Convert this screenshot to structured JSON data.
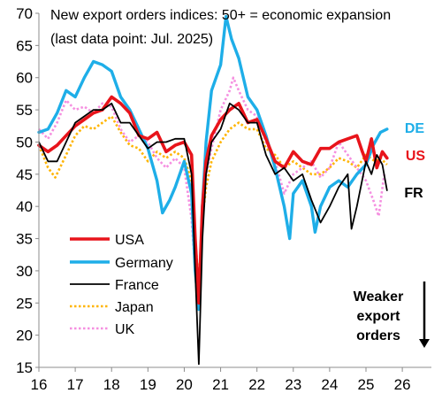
{
  "chart_data": {
    "type": "line",
    "title_line1": "New export orders indices: 50+ = economic expansion",
    "title_line2": "(last data point: Jul. 2025)",
    "xlabel": "",
    "ylabel": "",
    "xlim": [
      2016,
      2026.8
    ],
    "ylim": [
      15,
      70
    ],
    "x_ticks": [
      16,
      17,
      18,
      19,
      20,
      21,
      22,
      23,
      24,
      25,
      26
    ],
    "y_ticks": [
      15,
      20,
      25,
      30,
      35,
      40,
      45,
      50,
      55,
      60,
      65,
      70
    ],
    "grid": false,
    "legend_position": "lower-left",
    "annotation": [
      "Weaker",
      "export",
      "orders"
    ],
    "end_labels": [
      {
        "text": "DE",
        "color": "#1EAEE8",
        "y": 52.0
      },
      {
        "text": "US",
        "color": "#E8141B",
        "y": 47.2
      },
      {
        "text": "FR",
        "color": "#000000",
        "y": 42.4
      }
    ],
    "series": [
      {
        "name": "USA",
        "color": "#E8141B",
        "style": "solid",
        "points": [
          [
            2016.0,
            49.5
          ],
          [
            2016.25,
            48.5
          ],
          [
            2016.5,
            49.5
          ],
          [
            2016.75,
            51
          ],
          [
            2017.0,
            52.5
          ],
          [
            2017.25,
            53.5
          ],
          [
            2017.5,
            54.5
          ],
          [
            2017.75,
            55
          ],
          [
            2018.0,
            57
          ],
          [
            2018.25,
            56
          ],
          [
            2018.5,
            54.5
          ],
          [
            2018.75,
            51
          ],
          [
            2019.0,
            50.5
          ],
          [
            2019.25,
            51.5
          ],
          [
            2019.5,
            48.5
          ],
          [
            2019.75,
            49.5
          ],
          [
            2020.0,
            50
          ],
          [
            2020.2,
            48
          ],
          [
            2020.3,
            35
          ],
          [
            2020.4,
            25
          ],
          [
            2020.5,
            40
          ],
          [
            2020.6,
            47
          ],
          [
            2020.75,
            51
          ],
          [
            2021.0,
            53.5
          ],
          [
            2021.25,
            55
          ],
          [
            2021.5,
            56
          ],
          [
            2021.75,
            53
          ],
          [
            2022.0,
            53.5
          ],
          [
            2022.25,
            50.5
          ],
          [
            2022.5,
            47
          ],
          [
            2022.75,
            46
          ],
          [
            2023.0,
            48.5
          ],
          [
            2023.25,
            47
          ],
          [
            2023.5,
            46.5
          ],
          [
            2023.75,
            49
          ],
          [
            2024.0,
            49
          ],
          [
            2024.25,
            50
          ],
          [
            2024.5,
            50.5
          ],
          [
            2024.75,
            51
          ],
          [
            2024.9,
            48.5
          ],
          [
            2025.0,
            47
          ],
          [
            2025.15,
            50.5
          ],
          [
            2025.3,
            46
          ],
          [
            2025.45,
            48.5
          ],
          [
            2025.58,
            47.5
          ]
        ]
      },
      {
        "name": "Germany",
        "color": "#1EAEE8",
        "style": "solid",
        "points": [
          [
            2016.0,
            51.5
          ],
          [
            2016.25,
            52
          ],
          [
            2016.5,
            54.5
          ],
          [
            2016.75,
            58
          ],
          [
            2017.0,
            57
          ],
          [
            2017.25,
            60
          ],
          [
            2017.5,
            62.5
          ],
          [
            2017.75,
            62
          ],
          [
            2018.0,
            61
          ],
          [
            2018.25,
            57
          ],
          [
            2018.5,
            55
          ],
          [
            2018.75,
            52
          ],
          [
            2019.0,
            49
          ],
          [
            2019.25,
            44
          ],
          [
            2019.4,
            39
          ],
          [
            2019.6,
            41
          ],
          [
            2019.75,
            43
          ],
          [
            2020.0,
            47
          ],
          [
            2020.2,
            42
          ],
          [
            2020.3,
            30
          ],
          [
            2020.4,
            24
          ],
          [
            2020.5,
            40
          ],
          [
            2020.6,
            50
          ],
          [
            2020.75,
            58
          ],
          [
            2021.0,
            62
          ],
          [
            2021.15,
            69.5
          ],
          [
            2021.3,
            66
          ],
          [
            2021.5,
            63
          ],
          [
            2021.75,
            57
          ],
          [
            2022.0,
            55
          ],
          [
            2022.25,
            51
          ],
          [
            2022.5,
            46
          ],
          [
            2022.75,
            40
          ],
          [
            2022.9,
            35
          ],
          [
            2023.0,
            42
          ],
          [
            2023.25,
            44
          ],
          [
            2023.5,
            40
          ],
          [
            2023.6,
            36
          ],
          [
            2023.75,
            40
          ],
          [
            2024.0,
            43
          ],
          [
            2024.25,
            44
          ],
          [
            2024.5,
            43
          ],
          [
            2024.75,
            45
          ],
          [
            2025.0,
            46.5
          ],
          [
            2025.2,
            49.5
          ],
          [
            2025.4,
            51.5
          ],
          [
            2025.58,
            52.0
          ]
        ]
      },
      {
        "name": "France",
        "color": "#000000",
        "style": "solid",
        "points": [
          [
            2016.0,
            50
          ],
          [
            2016.25,
            47
          ],
          [
            2016.5,
            47
          ],
          [
            2016.75,
            50
          ],
          [
            2017.0,
            53
          ],
          [
            2017.25,
            54
          ],
          [
            2017.5,
            55
          ],
          [
            2017.75,
            55
          ],
          [
            2018.0,
            56
          ],
          [
            2018.25,
            53
          ],
          [
            2018.5,
            53
          ],
          [
            2018.75,
            51
          ],
          [
            2019.0,
            49
          ],
          [
            2019.25,
            50
          ],
          [
            2019.5,
            50
          ],
          [
            2019.75,
            50.5
          ],
          [
            2020.0,
            50.5
          ],
          [
            2020.2,
            45
          ],
          [
            2020.3,
            30
          ],
          [
            2020.4,
            15.5
          ],
          [
            2020.5,
            35
          ],
          [
            2020.6,
            45
          ],
          [
            2020.75,
            50
          ],
          [
            2021.0,
            52
          ],
          [
            2021.25,
            56
          ],
          [
            2021.5,
            55
          ],
          [
            2021.75,
            53
          ],
          [
            2022.0,
            53
          ],
          [
            2022.25,
            48
          ],
          [
            2022.5,
            45
          ],
          [
            2022.75,
            46
          ],
          [
            2023.0,
            44
          ],
          [
            2023.25,
            45
          ],
          [
            2023.5,
            41
          ],
          [
            2023.75,
            37.5
          ],
          [
            2024.0,
            40
          ],
          [
            2024.25,
            43
          ],
          [
            2024.5,
            45
          ],
          [
            2024.6,
            36.5
          ],
          [
            2024.75,
            40
          ],
          [
            2025.0,
            47
          ],
          [
            2025.15,
            45
          ],
          [
            2025.3,
            48
          ],
          [
            2025.45,
            46.5
          ],
          [
            2025.58,
            42.5
          ]
        ]
      },
      {
        "name": "Japan",
        "color": "#FFB400",
        "style": "dotted",
        "points": [
          [
            2016.0,
            49.5
          ],
          [
            2016.25,
            46
          ],
          [
            2016.45,
            44.5
          ],
          [
            2016.75,
            48
          ],
          [
            2017.0,
            51
          ],
          [
            2017.25,
            52.5
          ],
          [
            2017.5,
            52
          ],
          [
            2017.75,
            53
          ],
          [
            2018.0,
            54
          ],
          [
            2018.25,
            51.5
          ],
          [
            2018.5,
            49.5
          ],
          [
            2018.75,
            49
          ],
          [
            2019.0,
            47
          ],
          [
            2019.25,
            48.5
          ],
          [
            2019.5,
            47.5
          ],
          [
            2019.75,
            48.5
          ],
          [
            2020.0,
            47.5
          ],
          [
            2020.2,
            44
          ],
          [
            2020.3,
            35
          ],
          [
            2020.4,
            28
          ],
          [
            2020.5,
            38
          ],
          [
            2020.6,
            43
          ],
          [
            2020.75,
            47
          ],
          [
            2021.0,
            50
          ],
          [
            2021.25,
            52
          ],
          [
            2021.5,
            53
          ],
          [
            2021.75,
            52
          ],
          [
            2022.0,
            52
          ],
          [
            2022.25,
            49
          ],
          [
            2022.5,
            48
          ],
          [
            2022.75,
            46
          ],
          [
            2023.0,
            47
          ],
          [
            2023.25,
            46
          ],
          [
            2023.5,
            45
          ],
          [
            2023.75,
            45
          ],
          [
            2024.0,
            46
          ],
          [
            2024.25,
            47.5
          ],
          [
            2024.5,
            47
          ],
          [
            2024.75,
            46
          ],
          [
            2025.0,
            48
          ],
          [
            2025.25,
            47
          ],
          [
            2025.4,
            47.5
          ],
          [
            2025.58,
            46.5
          ]
        ]
      },
      {
        "name": "UK",
        "color": "#F58FE0",
        "style": "dotted",
        "points": [
          [
            2016.0,
            52
          ],
          [
            2016.25,
            50.5
          ],
          [
            2016.5,
            53
          ],
          [
            2016.75,
            56.5
          ],
          [
            2017.0,
            55
          ],
          [
            2017.25,
            55.5
          ],
          [
            2017.5,
            54.5
          ],
          [
            2017.75,
            56
          ],
          [
            2018.0,
            55.5
          ],
          [
            2018.25,
            52
          ],
          [
            2018.5,
            50
          ],
          [
            2018.75,
            51
          ],
          [
            2019.0,
            50
          ],
          [
            2019.25,
            47.5
          ],
          [
            2019.5,
            46
          ],
          [
            2019.75,
            47.5
          ],
          [
            2020.0,
            46
          ],
          [
            2020.2,
            38
          ],
          [
            2020.3,
            30
          ],
          [
            2020.4,
            25
          ],
          [
            2020.5,
            38
          ],
          [
            2020.6,
            45
          ],
          [
            2020.75,
            49
          ],
          [
            2021.0,
            55
          ],
          [
            2021.25,
            58
          ],
          [
            2021.35,
            60
          ],
          [
            2021.5,
            58
          ],
          [
            2021.75,
            55
          ],
          [
            2022.0,
            54
          ],
          [
            2022.25,
            50
          ],
          [
            2022.5,
            47
          ],
          [
            2022.75,
            42
          ],
          [
            2023.0,
            45
          ],
          [
            2023.25,
            46
          ],
          [
            2023.5,
            47
          ],
          [
            2023.75,
            44.5
          ],
          [
            2024.0,
            46
          ],
          [
            2024.25,
            50
          ],
          [
            2024.5,
            48
          ],
          [
            2024.75,
            46
          ],
          [
            2025.0,
            44
          ],
          [
            2025.2,
            41
          ],
          [
            2025.35,
            38.5
          ],
          [
            2025.5,
            45
          ]
        ]
      }
    ]
  }
}
